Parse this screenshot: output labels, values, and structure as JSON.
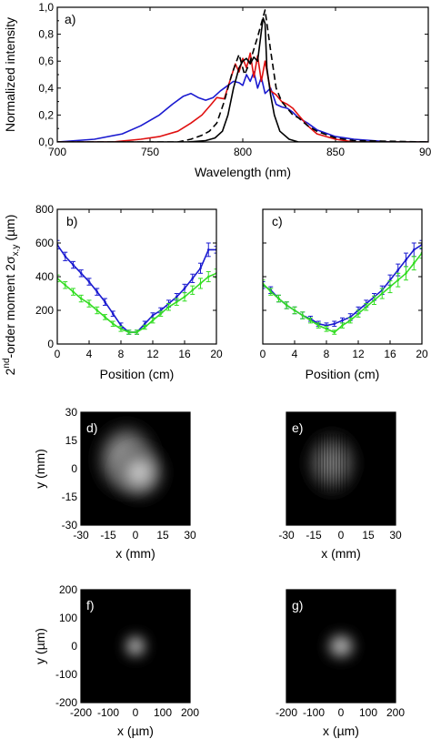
{
  "colors": {
    "black": "#000000",
    "red": "#e01010",
    "blue": "#1a1ad0",
    "dashed": "#000000",
    "green": "#33dd22",
    "navy": "#1a1ad0"
  },
  "chart_data": [
    {
      "panel": "a)",
      "type": "line",
      "xlabel": "Wavelength (nm)",
      "ylabel": "Normalized intensity",
      "xlim": [
        700,
        900
      ],
      "ylim": [
        0,
        1.0
      ],
      "xticks": [
        "700",
        "750",
        "800",
        "850",
        "900"
      ],
      "yticks": [
        "0,0",
        "0,2",
        "0,4",
        "0,6",
        "0,8",
        "1,0"
      ],
      "yticks_minor": [
        "0,1",
        "0,3",
        "0,5",
        "0,7",
        "0,9"
      ],
      "series": [
        {
          "color": "blue",
          "dash": false,
          "x": [
            700,
            720,
            735,
            745,
            755,
            762,
            768,
            772,
            776,
            780,
            784,
            788,
            792,
            795,
            798,
            800,
            802,
            804,
            806,
            808,
            810,
            812,
            815,
            818,
            821,
            824,
            827,
            830,
            835,
            840,
            850,
            860,
            870,
            880,
            900
          ],
          "y": [
            0.0,
            0.02,
            0.06,
            0.12,
            0.2,
            0.28,
            0.34,
            0.36,
            0.33,
            0.31,
            0.33,
            0.38,
            0.42,
            0.45,
            0.44,
            0.42,
            0.5,
            0.45,
            0.52,
            0.4,
            0.48,
            0.36,
            0.4,
            0.28,
            0.26,
            0.25,
            0.22,
            0.18,
            0.14,
            0.09,
            0.04,
            0.02,
            0.01,
            0.0,
            0.0
          ]
        },
        {
          "color": "red",
          "dash": false,
          "x": [
            700,
            730,
            745,
            755,
            765,
            772,
            778,
            783,
            786,
            790,
            793,
            796,
            798,
            800,
            802,
            804,
            806,
            808,
            810,
            812,
            815,
            818,
            821,
            824,
            827,
            830,
            835,
            840,
            850,
            860,
            880,
            900
          ],
          "y": [
            0.0,
            0.0,
            0.02,
            0.04,
            0.08,
            0.14,
            0.2,
            0.28,
            0.33,
            0.32,
            0.45,
            0.58,
            0.52,
            0.62,
            0.55,
            0.66,
            0.48,
            0.64,
            0.45,
            0.6,
            0.38,
            0.35,
            0.3,
            0.28,
            0.25,
            0.2,
            0.12,
            0.06,
            0.02,
            0.0,
            0.0,
            0.0
          ]
        },
        {
          "color": "dashed",
          "dash": true,
          "x": [
            700,
            765,
            772,
            778,
            782,
            786,
            790,
            794,
            798,
            801,
            804,
            808,
            812,
            815,
            818,
            821,
            824,
            827,
            830,
            835,
            840,
            850,
            860,
            900
          ],
          "y": [
            0.0,
            0.0,
            0.02,
            0.05,
            0.08,
            0.14,
            0.3,
            0.5,
            0.65,
            0.5,
            0.6,
            0.78,
            0.98,
            0.68,
            0.4,
            0.3,
            0.25,
            0.2,
            0.18,
            0.12,
            0.08,
            0.03,
            0.01,
            0.0
          ]
        },
        {
          "color": "black",
          "dash": false,
          "x": [
            700,
            770,
            780,
            785,
            789,
            792,
            795,
            798,
            800,
            802,
            804,
            806,
            808,
            810,
            811,
            812,
            813,
            815,
            817,
            820,
            825,
            830,
            840,
            900
          ],
          "y": [
            0.0,
            0.0,
            0.01,
            0.03,
            0.08,
            0.2,
            0.4,
            0.55,
            0.6,
            0.62,
            0.58,
            0.63,
            0.6,
            0.82,
            0.92,
            0.88,
            0.55,
            0.35,
            0.2,
            0.08,
            0.02,
            0.0,
            0.0,
            0.0
          ]
        }
      ]
    },
    {
      "panel": "b)",
      "type": "line",
      "xlabel": "Position (cm)",
      "ylabel": "2nd-order moment 2σx,y (µm)",
      "ylabel_parts": {
        "lead": "2",
        "sup": "nd",
        "mid": "-order moment 2σ",
        "sub": "x,y",
        "tail": " (µm)"
      },
      "xlim": [
        0,
        20
      ],
      "ylim": [
        0,
        800
      ],
      "xticks": [
        "0",
        "4",
        "8",
        "12",
        "16",
        "20"
      ],
      "yticks": [
        "0",
        "200",
        "400",
        "600",
        "800"
      ],
      "series": [
        {
          "color": "navy",
          "markers": "error-bar",
          "x": [
            0,
            1,
            2,
            3,
            4,
            5,
            6,
            7,
            8,
            9,
            10,
            11,
            12,
            13,
            14,
            15,
            16,
            17,
            18,
            19,
            20
          ],
          "y": [
            590,
            520,
            470,
            420,
            370,
            310,
            250,
            180,
            110,
            70,
            70,
            120,
            170,
            200,
            240,
            280,
            330,
            390,
            450,
            560,
            560
          ],
          "err": [
            25,
            25,
            20,
            20,
            20,
            20,
            20,
            15,
            15,
            12,
            12,
            15,
            15,
            15,
            20,
            20,
            25,
            25,
            30,
            40,
            20
          ]
        },
        {
          "color": "green",
          "markers": "error-bar",
          "x": [
            0,
            1,
            2,
            3,
            4,
            5,
            6,
            7,
            8,
            9,
            10,
            11,
            12,
            13,
            14,
            15,
            16,
            17,
            18,
            19,
            20
          ],
          "y": [
            390,
            350,
            310,
            270,
            240,
            200,
            160,
            120,
            90,
            70,
            70,
            100,
            140,
            180,
            220,
            250,
            280,
            320,
            360,
            400,
            420
          ],
          "err": [
            20,
            20,
            20,
            20,
            20,
            20,
            15,
            15,
            15,
            12,
            12,
            12,
            15,
            15,
            20,
            20,
            25,
            25,
            30,
            30,
            25
          ]
        }
      ]
    },
    {
      "panel": "c)",
      "type": "line",
      "xlabel": "Position (cm)",
      "xlim": [
        0,
        20
      ],
      "ylim": [
        0,
        800
      ],
      "xticks": [
        "0",
        "4",
        "8",
        "12",
        "16",
        "20"
      ],
      "series": [
        {
          "color": "navy",
          "markers": "error-bar",
          "x": [
            0,
            1,
            2,
            3,
            4,
            5,
            6,
            7,
            8,
            9,
            10,
            11,
            12,
            13,
            14,
            15,
            16,
            17,
            18,
            19,
            20
          ],
          "y": [
            350,
            320,
            270,
            230,
            200,
            170,
            150,
            120,
            110,
            120,
            140,
            160,
            200,
            240,
            280,
            320,
            380,
            440,
            500,
            560,
            590
          ],
          "err": [
            20,
            20,
            20,
            20,
            20,
            20,
            15,
            15,
            15,
            15,
            15,
            20,
            20,
            20,
            20,
            25,
            30,
            35,
            40,
            40,
            25
          ]
        },
        {
          "color": "green",
          "markers": "error-bar",
          "x": [
            0,
            1,
            2,
            3,
            4,
            5,
            6,
            7,
            8,
            9,
            10,
            11,
            12,
            13,
            14,
            15,
            16,
            17,
            18,
            19,
            20
          ],
          "y": [
            360,
            310,
            270,
            230,
            200,
            170,
            140,
            110,
            90,
            70,
            110,
            140,
            180,
            220,
            260,
            300,
            340,
            380,
            420,
            480,
            540
          ],
          "err": [
            20,
            20,
            20,
            20,
            20,
            20,
            15,
            15,
            15,
            12,
            15,
            15,
            20,
            20,
            25,
            30,
            35,
            40,
            40,
            40,
            30
          ]
        }
      ]
    },
    {
      "panel": "d)",
      "type": "heatmap",
      "xlabel": "x (mm)",
      "ylabel": "y (mm)",
      "xlim": [
        -30,
        30
      ],
      "ylim": [
        -30,
        30
      ],
      "xticks": [
        "-30",
        "-15",
        "0",
        "15",
        "30"
      ],
      "yticks": [
        "-30",
        "-15",
        "0",
        "15",
        "30"
      ],
      "spots": [
        {
          "x": -5,
          "y": 5,
          "rx": 14,
          "ry": 16,
          "peak": 0.8
        },
        {
          "x": 2,
          "y": -2,
          "rx": 12,
          "ry": 12,
          "peak": 0.9
        }
      ]
    },
    {
      "panel": "e)",
      "type": "heatmap",
      "xlabel": "x (mm)",
      "xlim": [
        -30,
        30
      ],
      "ylim": [
        -30,
        30
      ],
      "xticks": [
        "-30",
        "-15",
        "0",
        "15",
        "30"
      ],
      "spots": [
        {
          "x": -5,
          "y": 3,
          "rx": 12,
          "ry": 14,
          "peak": 0.55,
          "fringes": true
        }
      ]
    },
    {
      "panel": "f)",
      "type": "heatmap",
      "xlabel": "x (µm)",
      "ylabel": "y (µm)",
      "xlim": [
        -200,
        200
      ],
      "ylim": [
        -200,
        200
      ],
      "xticks": [
        "-200",
        "-100",
        "0",
        "100",
        "200"
      ],
      "yticks": [
        "-200",
        "-100",
        "0",
        "100",
        "200"
      ],
      "spots": [
        {
          "x": 0,
          "y": 0,
          "rx": 35,
          "ry": 35,
          "peak": 1.0
        }
      ]
    },
    {
      "panel": "g)",
      "type": "heatmap",
      "xlabel": "x (µm)",
      "xlim": [
        -200,
        200
      ],
      "ylim": [
        -200,
        200
      ],
      "xticks": [
        "-200",
        "-100",
        "0",
        "100",
        "200"
      ],
      "spots": [
        {
          "x": 0,
          "y": 0,
          "rx": 45,
          "ry": 40,
          "peak": 0.95
        }
      ]
    }
  ]
}
